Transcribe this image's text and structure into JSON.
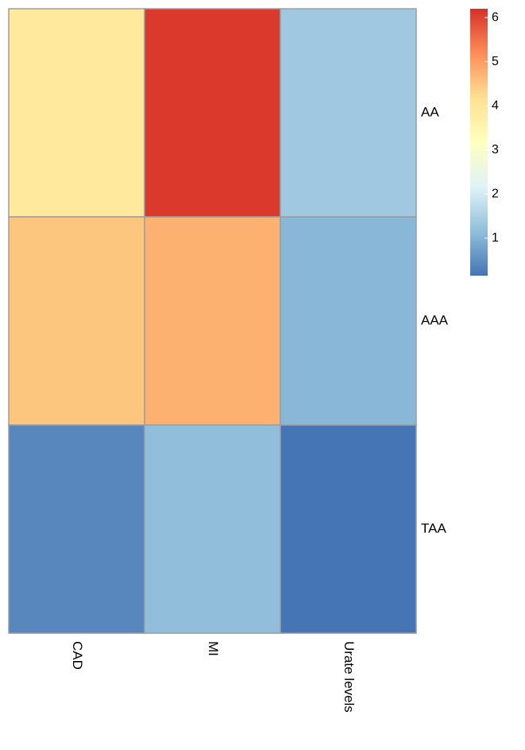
{
  "chart_data": {
    "type": "heatmap",
    "columns": [
      "CAD",
      "MI",
      "Urate levels"
    ],
    "rows": [
      "AA",
      "AAA",
      "TAA"
    ],
    "values": [
      [
        3.9,
        6.1,
        1.35
      ],
      [
        4.5,
        4.75,
        1.05
      ],
      [
        0.4,
        1.15,
        0.15
      ]
    ],
    "colorbar": {
      "range": [
        0.15,
        6.2
      ],
      "ticks": [
        1,
        2,
        3,
        4,
        5,
        6
      ],
      "tick_labels": [
        "1",
        "2",
        "3",
        "4",
        "5",
        "6"
      ],
      "colors": [
        "#4575b4",
        "#91bfdb",
        "#e0f3f8",
        "#ffffbf",
        "#fee090",
        "#fc8d59",
        "#d73027"
      ],
      "placement": "top-right"
    },
    "row_labels_side": "right",
    "column_label_orientation": "rotated-90-clockwise"
  }
}
